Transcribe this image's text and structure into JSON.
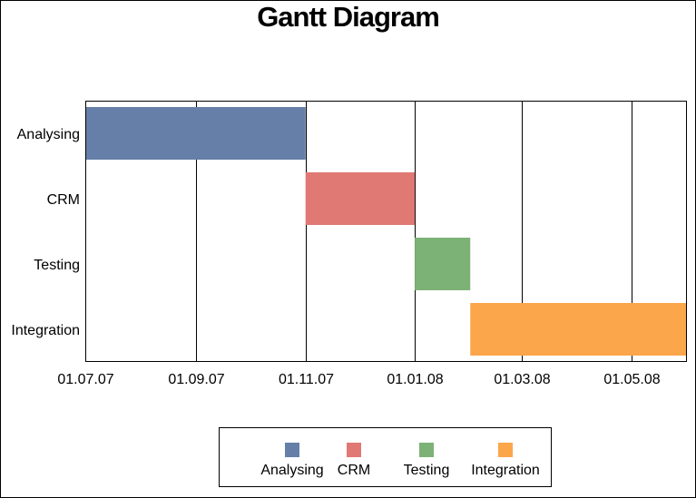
{
  "chart_data": {
    "type": "gantt",
    "title": "Gantt Diagram",
    "categories": [
      "Analysing",
      "CRM",
      "Testing",
      "Integration"
    ],
    "tasks": [
      {
        "name": "Analysing",
        "start": "2007-07-01",
        "end": "2007-11-01",
        "color": "#657fa8"
      },
      {
        "name": "CRM",
        "start": "2007-11-01",
        "end": "2008-01-01",
        "color": "#e07873"
      },
      {
        "name": "Testing",
        "start": "2008-01-01",
        "end": "2008-02-01",
        "color": "#7db277"
      },
      {
        "name": "Integration",
        "start": "2008-02-01",
        "end": "2008-06-01",
        "color": "#fba64b"
      }
    ],
    "x_ticks": [
      {
        "date": "2007-07-01",
        "label": "01.07.07"
      },
      {
        "date": "2007-09-01",
        "label": "01.09.07"
      },
      {
        "date": "2007-11-01",
        "label": "01.11.07"
      },
      {
        "date": "2008-01-01",
        "label": "01.01.08"
      },
      {
        "date": "2008-03-01",
        "label": "01.03.08"
      },
      {
        "date": "2008-05-01",
        "label": "01.05.08"
      }
    ],
    "xlim": [
      "2007-07-01",
      "2008-06-01"
    ],
    "grid": "vertical",
    "legend_position": "bottom",
    "legend": [
      "Analysing",
      "CRM",
      "Testing",
      "Integration"
    ]
  }
}
